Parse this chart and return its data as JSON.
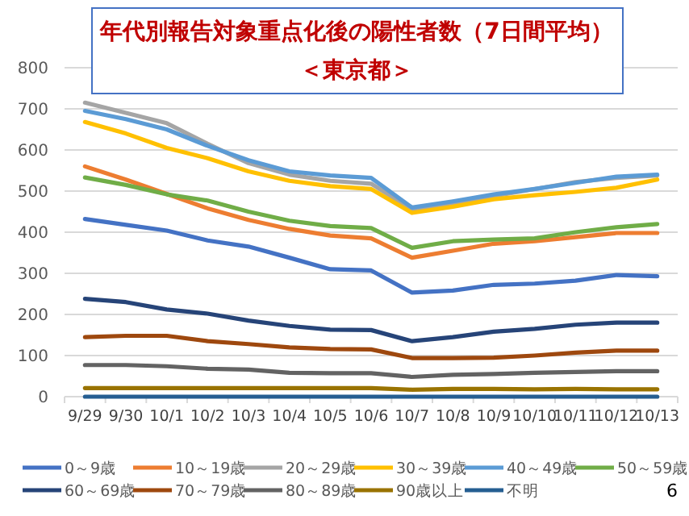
{
  "chart_data": {
    "type": "line",
    "title": "年代別報告対象重点化後の陽性者数（7日間平均）",
    "subtitle": "＜東京都＞",
    "categories": [
      "9/29",
      "9/30",
      "10/1",
      "10/2",
      "10/3",
      "10/4",
      "10/5",
      "10/6",
      "10/7",
      "10/8",
      "10/9",
      "10/10",
      "10/11",
      "10/12",
      "10/13"
    ],
    "series": [
      {
        "name": "0～9歳",
        "color": "#4472c4",
        "values": [
          432,
          418,
          404,
          380,
          365,
          338,
          310,
          307,
          253,
          258,
          272,
          275,
          282,
          296,
          293
        ]
      },
      {
        "name": "10～19歳",
        "color": "#ed7d31",
        "values": [
          560,
          528,
          493,
          458,
          430,
          408,
          392,
          385,
          338,
          355,
          372,
          378,
          388,
          398,
          398
        ]
      },
      {
        "name": "20～29歳",
        "color": "#a5a5a5",
        "values": [
          715,
          690,
          665,
          615,
          568,
          540,
          525,
          518,
          455,
          470,
          488,
          505,
          522,
          532,
          538
        ]
      },
      {
        "name": "30～39歳",
        "color": "#ffc000",
        "values": [
          668,
          640,
          605,
          580,
          548,
          525,
          512,
          505,
          447,
          462,
          480,
          490,
          498,
          508,
          528
        ]
      },
      {
        "name": "40～49歳",
        "color": "#5b9bd5",
        "values": [
          695,
          675,
          650,
          610,
          575,
          548,
          538,
          532,
          460,
          475,
          492,
          505,
          520,
          535,
          540
        ]
      },
      {
        "name": "50～59歳",
        "color": "#70ad47",
        "values": [
          533,
          515,
          492,
          477,
          450,
          428,
          415,
          410,
          362,
          378,
          382,
          385,
          400,
          412,
          420
        ]
      },
      {
        "name": "60～69歳",
        "color": "#264478",
        "values": [
          238,
          230,
          212,
          202,
          185,
          172,
          163,
          162,
          135,
          145,
          158,
          165,
          175,
          180,
          180
        ]
      },
      {
        "name": "70～79歳",
        "color": "#9e480e",
        "values": [
          145,
          148,
          148,
          135,
          128,
          120,
          116,
          115,
          94,
          94,
          95,
          100,
          107,
          112,
          112
        ]
      },
      {
        "name": "80～89歳",
        "color": "#636363",
        "values": [
          77,
          77,
          74,
          68,
          66,
          58,
          57,
          57,
          48,
          53,
          55,
          58,
          60,
          62,
          62
        ]
      },
      {
        "name": "90歳以上",
        "color": "#997300",
        "values": [
          21,
          21,
          21,
          21,
          21,
          21,
          21,
          21,
          17,
          19,
          19,
          18,
          19,
          18,
          18
        ]
      },
      {
        "name": "不明",
        "color": "#255e91",
        "values": [
          0,
          0,
          0,
          0,
          0,
          0,
          0,
          0,
          0,
          0,
          0,
          0,
          0,
          0,
          0
        ]
      }
    ],
    "ylim": [
      0,
      800
    ],
    "yticks": [
      0,
      100,
      200,
      300,
      400,
      500,
      600,
      700,
      800
    ],
    "grid": "y",
    "legend": "bottom",
    "line_style": "solid",
    "marker": "none",
    "annotations": [
      "6"
    ]
  }
}
